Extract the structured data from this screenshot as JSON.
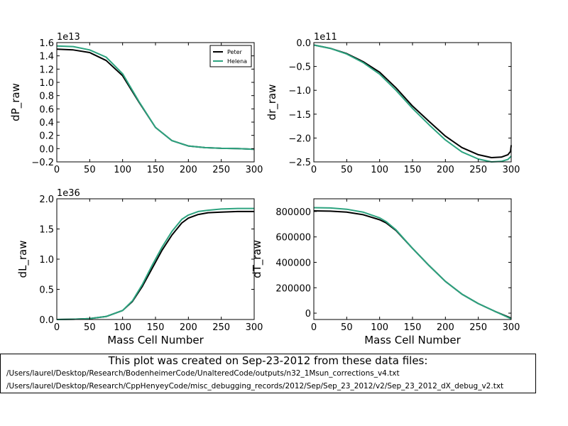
{
  "chart_data": [
    {
      "type": "line",
      "ylabel": "dP_raw",
      "xlabel": "",
      "exponent_label": "1e13",
      "xlim": [
        0,
        300
      ],
      "ylim": [
        -0.2,
        1.6
      ],
      "xticks": [
        0,
        50,
        100,
        150,
        200,
        250,
        300
      ],
      "yticks": [
        -0.2,
        0.0,
        0.2,
        0.4,
        0.6,
        0.8,
        1.0,
        1.2,
        1.4,
        1.6
      ],
      "ytick_labels": [
        "−0.2",
        "0.0",
        "0.2",
        "0.4",
        "0.6",
        "0.8",
        "1.0",
        "1.2",
        "1.4",
        "1.6"
      ],
      "legend": {
        "position": "upper right",
        "entries": [
          "Peter",
          "Helena"
        ]
      },
      "series": [
        {
          "name": "Peter",
          "color": "#000000",
          "x": [
            0,
            25,
            50,
            75,
            100,
            125,
            150,
            175,
            200,
            225,
            250,
            275,
            300
          ],
          "y": [
            1.5,
            1.49,
            1.45,
            1.33,
            1.1,
            0.7,
            0.32,
            0.12,
            0.04,
            0.015,
            0.005,
            0.0,
            -0.01
          ]
        },
        {
          "name": "Helena",
          "color": "#2ca37f",
          "x": [
            0,
            25,
            50,
            75,
            100,
            125,
            150,
            175,
            200,
            225,
            250,
            275,
            300
          ],
          "y": [
            1.55,
            1.54,
            1.49,
            1.38,
            1.13,
            0.71,
            0.32,
            0.12,
            0.04,
            0.015,
            0.005,
            0.0,
            -0.01
          ]
        }
      ]
    },
    {
      "type": "line",
      "ylabel": "dr_raw",
      "xlabel": "",
      "exponent_label": "1e11",
      "xlim": [
        0,
        300
      ],
      "ylim": [
        -2.5,
        0.0
      ],
      "xticks": [
        0,
        50,
        100,
        150,
        200,
        250,
        300
      ],
      "yticks": [
        -2.5,
        -2.0,
        -1.5,
        -1.0,
        -0.5,
        0.0
      ],
      "ytick_labels": [
        "−2.5",
        "−2.0",
        "−1.5",
        "−1.0",
        "−0.5",
        "0.0"
      ],
      "series": [
        {
          "name": "Peter",
          "color": "#000000",
          "x": [
            0,
            25,
            50,
            75,
            100,
            125,
            150,
            175,
            200,
            225,
            250,
            270,
            285,
            295,
            299,
            300
          ],
          "y": [
            -0.05,
            -0.12,
            -0.23,
            -0.4,
            -0.62,
            -0.95,
            -1.33,
            -1.65,
            -1.96,
            -2.2,
            -2.35,
            -2.41,
            -2.4,
            -2.35,
            -2.28,
            -2.15
          ]
        },
        {
          "name": "Helena",
          "color": "#2ca37f",
          "x": [
            0,
            25,
            50,
            75,
            100,
            125,
            150,
            175,
            200,
            225,
            250,
            270,
            285,
            295,
            300
          ],
          "y": [
            -0.05,
            -0.12,
            -0.24,
            -0.42,
            -0.66,
            -1.0,
            -1.38,
            -1.72,
            -2.04,
            -2.29,
            -2.44,
            -2.5,
            -2.49,
            -2.45,
            -2.38
          ]
        }
      ]
    },
    {
      "type": "line",
      "ylabel": "dL_raw",
      "xlabel": "Mass Cell Number",
      "exponent_label": "1e36",
      "xlim": [
        0,
        300
      ],
      "ylim": [
        0.0,
        2.0
      ],
      "xticks": [
        0,
        50,
        100,
        150,
        200,
        250,
        300
      ],
      "yticks": [
        0.0,
        0.5,
        1.0,
        1.5,
        2.0
      ],
      "ytick_labels": [
        "0.0",
        "0.5",
        "1.0",
        "1.5",
        "2.0"
      ],
      "series": [
        {
          "name": "Peter",
          "color": "#000000",
          "x": [
            0,
            25,
            50,
            75,
            100,
            115,
            130,
            145,
            160,
            175,
            190,
            200,
            215,
            230,
            250,
            275,
            300
          ],
          "y": [
            0.0,
            0.005,
            0.015,
            0.05,
            0.15,
            0.3,
            0.55,
            0.85,
            1.15,
            1.4,
            1.6,
            1.68,
            1.74,
            1.77,
            1.78,
            1.79,
            1.79
          ]
        },
        {
          "name": "Helena",
          "color": "#2ca37f",
          "x": [
            0,
            25,
            50,
            75,
            100,
            115,
            130,
            145,
            160,
            175,
            190,
            200,
            215,
            230,
            250,
            275,
            300
          ],
          "y": [
            0.0,
            0.005,
            0.015,
            0.05,
            0.15,
            0.31,
            0.58,
            0.9,
            1.2,
            1.46,
            1.66,
            1.73,
            1.79,
            1.81,
            1.83,
            1.84,
            1.84
          ]
        }
      ]
    },
    {
      "type": "line",
      "ylabel": "dT_raw",
      "xlabel": "Mass Cell Number",
      "exponent_label": "",
      "xlim": [
        0,
        300
      ],
      "ylim": [
        -50000,
        900000
      ],
      "xticks": [
        0,
        50,
        100,
        150,
        200,
        250,
        300
      ],
      "yticks": [
        0,
        200000,
        400000,
        600000,
        800000
      ],
      "ytick_labels": [
        "0",
        "200000",
        "400000",
        "600000",
        "800000"
      ],
      "series": [
        {
          "name": "Peter",
          "color": "#000000",
          "x": [
            0,
            25,
            50,
            75,
            100,
            110,
            125,
            150,
            175,
            200,
            225,
            250,
            275,
            300
          ],
          "y": [
            805000,
            803000,
            795000,
            775000,
            735000,
            710000,
            650000,
            510000,
            375000,
            250000,
            150000,
            75000,
            15000,
            -40000
          ]
        },
        {
          "name": "Helena",
          "color": "#2ca37f",
          "x": [
            0,
            25,
            50,
            75,
            100,
            110,
            125,
            150,
            175,
            200,
            225,
            250,
            275,
            300
          ],
          "y": [
            830000,
            828000,
            818000,
            795000,
            750000,
            720000,
            655000,
            510000,
            375000,
            250000,
            150000,
            75000,
            15000,
            -45000
          ]
        }
      ]
    }
  ],
  "footer": {
    "title": "This plot was created on Sep-23-2012 from these data files:",
    "files": [
      "/Users/laurel/Desktop/Research/BodenheimerCode/UnalteredCode/outputs/n32_1Msun_corrections_v4.txt",
      "/Users/laurel/Desktop/Research/CppHenyeyCode/misc_debugging_records/2012/Sep/Sep_23_2012/v2/Sep_23_2012_dX_debug_v2.txt"
    ]
  }
}
